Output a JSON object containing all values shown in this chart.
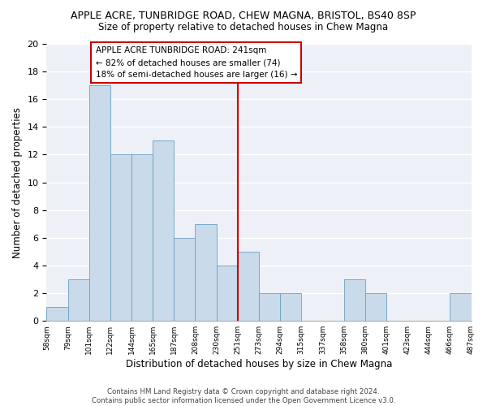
{
  "title": "APPLE ACRE, TUNBRIDGE ROAD, CHEW MAGNA, BRISTOL, BS40 8SP",
  "subtitle": "Size of property relative to detached houses in Chew Magna",
  "xlabel": "Distribution of detached houses by size in Chew Magna",
  "ylabel": "Number of detached properties",
  "bar_values": [
    1,
    3,
    17,
    12,
    12,
    13,
    6,
    7,
    4,
    5,
    2,
    2,
    0,
    0,
    3,
    2,
    0,
    0,
    0,
    2
  ],
  "bin_labels": [
    "58sqm",
    "79sqm",
    "101sqm",
    "122sqm",
    "144sqm",
    "165sqm",
    "187sqm",
    "208sqm",
    "230sqm",
    "251sqm",
    "273sqm",
    "294sqm",
    "315sqm",
    "337sqm",
    "358sqm",
    "380sqm",
    "401sqm",
    "423sqm",
    "444sqm",
    "466sqm",
    "487sqm"
  ],
  "bar_color": "#c9daea",
  "bar_edge_color": "#6a9fc0",
  "vline_x": 9,
  "vline_color": "#cc0000",
  "annotation_text": "APPLE ACRE TUNBRIDGE ROAD: 241sqm\n← 82% of detached houses are smaller (74)\n18% of semi-detached houses are larger (16) →",
  "annotation_box_color": "#ffffff",
  "annotation_box_edge": "#cc0000",
  "ylim": [
    0,
    20
  ],
  "yticks": [
    0,
    2,
    4,
    6,
    8,
    10,
    12,
    14,
    16,
    18,
    20
  ],
  "footnote": "Contains HM Land Registry data © Crown copyright and database right 2024.\nContains public sector information licensed under the Open Government Licence v3.0.",
  "background_color": "#edf1f7",
  "grid_color": "#ffffff",
  "fig_bg": "#ffffff"
}
